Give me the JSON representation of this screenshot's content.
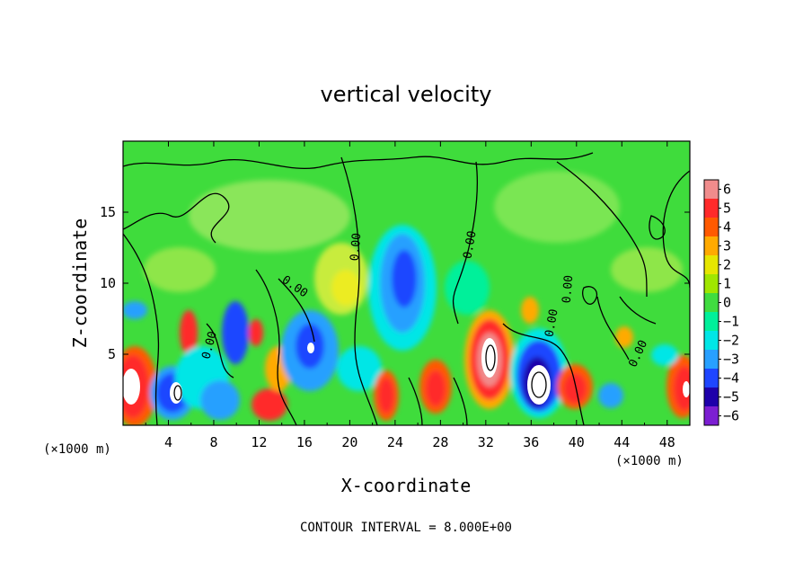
{
  "chart_data": {
    "type": "heatmap",
    "title": "vertical velocity",
    "xlabel": "X-coordinate",
    "ylabel": "Z-coordinate",
    "x_units": "(×1000 m)",
    "z_units": "(×1000 m)",
    "xlim": [
      0,
      50
    ],
    "ylim": [
      0,
      20
    ],
    "x_ticks": [
      "4",
      "8",
      "12",
      "16",
      "20",
      "24",
      "28",
      "32",
      "36",
      "40",
      "44",
      "48"
    ],
    "y_ticks": [
      "5",
      "10",
      "15"
    ],
    "contour_line_labels": [
      "0.00",
      "0.00",
      "0.00",
      "0.00",
      "0.00",
      "0.00",
      "0.00"
    ],
    "colorbar": {
      "levels": [
        "6",
        "5",
        "4",
        "3",
        "2",
        "1",
        "0",
        "−1",
        "−2",
        "−3",
        "−4",
        "−5",
        "−6"
      ],
      "colors": [
        "#f08c8c",
        "#ff2a2a",
        "#ff5a00",
        "#ffaa00",
        "#e6e600",
        "#a0e600",
        "#40dc40",
        "#00f09a",
        "#00e6e6",
        "#28a0ff",
        "#1e46ff",
        "#1e00aa",
        "#7c1ed2"
      ]
    },
    "features": [
      {
        "name": "updraft",
        "x_km": 0.7,
        "z_km": 2.5,
        "value": 6
      },
      {
        "name": "downdraft",
        "x_km": 5.0,
        "z_km": 2.6,
        "value": -6
      },
      {
        "name": "downdraft",
        "x_km": 10.0,
        "z_km": 6.5,
        "value": -5
      },
      {
        "name": "downdraft",
        "x_km": 17.0,
        "z_km": 5.5,
        "value": -5
      },
      {
        "name": "downdraft",
        "x_km": 24.5,
        "z_km": 9.5,
        "value": -4
      },
      {
        "name": "updraft",
        "x_km": 23.0,
        "z_km": 2.0,
        "value": 5
      },
      {
        "name": "updraft",
        "x_km": 27.0,
        "z_km": 2.5,
        "value": 5
      },
      {
        "name": "updraft",
        "x_km": 32.0,
        "z_km": 4.5,
        "value": 6
      },
      {
        "name": "downdraft",
        "x_km": 36.0,
        "z_km": 3.5,
        "value": -6
      },
      {
        "name": "updraft",
        "x_km": 39.5,
        "z_km": 2.5,
        "value": 5
      },
      {
        "name": "updraft",
        "x_km": 49.5,
        "z_km": 2.5,
        "value": 5
      }
    ],
    "footer": "CONTOUR INTERVAL = 8.000E+00",
    "grid": false,
    "legend": "colorbar right"
  }
}
